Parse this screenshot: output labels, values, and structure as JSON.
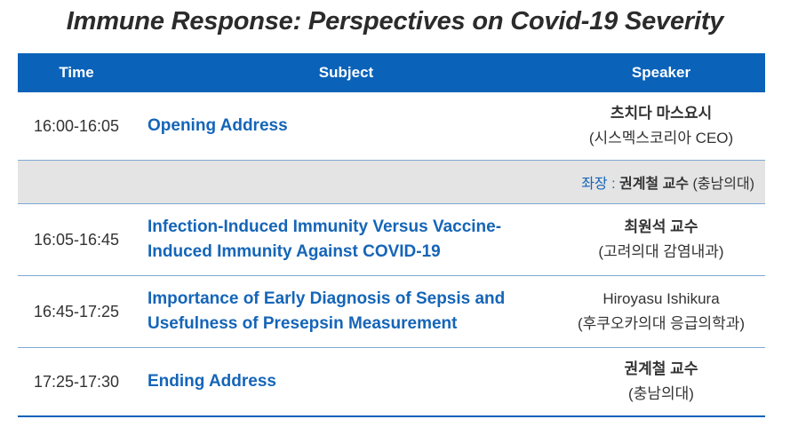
{
  "title": "Immune Response: Perspectives on Covid-19 Severity",
  "header": {
    "time": "Time",
    "subject": "Subject",
    "speaker": "Speaker"
  },
  "rows": [
    {
      "time": "16:00-16:05",
      "subject": [
        "Opening Address"
      ],
      "speaker_name": "츠치다 마스요시",
      "speaker_aff": "(시스멕스코리아 CEO)"
    },
    {
      "time": "16:05-16:45",
      "subject": [
        "Infection-Induced Immunity Versus Vaccine-",
        "Induced Immunity Against COVID-19"
      ],
      "speaker_name": "최원석 교수",
      "speaker_aff": "(고려의대 감염내과)"
    },
    {
      "time": "16:45-17:25",
      "subject": [
        "Importance of Early Diagnosis of Sepsis and",
        "Usefulness of Presepsin Measurement"
      ],
      "speaker_name": "Hiroyasu Ishikura",
      "speaker_aff": "(후쿠오카의대 응급의학과)"
    },
    {
      "time": "17:25-17:30",
      "subject": [
        "Ending Address"
      ],
      "speaker_name": "권계철 교수",
      "speaker_aff": "(충남의대)"
    }
  ],
  "chair": {
    "label": "좌장 : ",
    "name": "권계철 교수",
    "affiliation": " (충남의대)"
  },
  "colors": {
    "header_bg": "#0a62b9",
    "subject_text": "#1565b8",
    "chair_row_bg": "#e4e4e4"
  }
}
